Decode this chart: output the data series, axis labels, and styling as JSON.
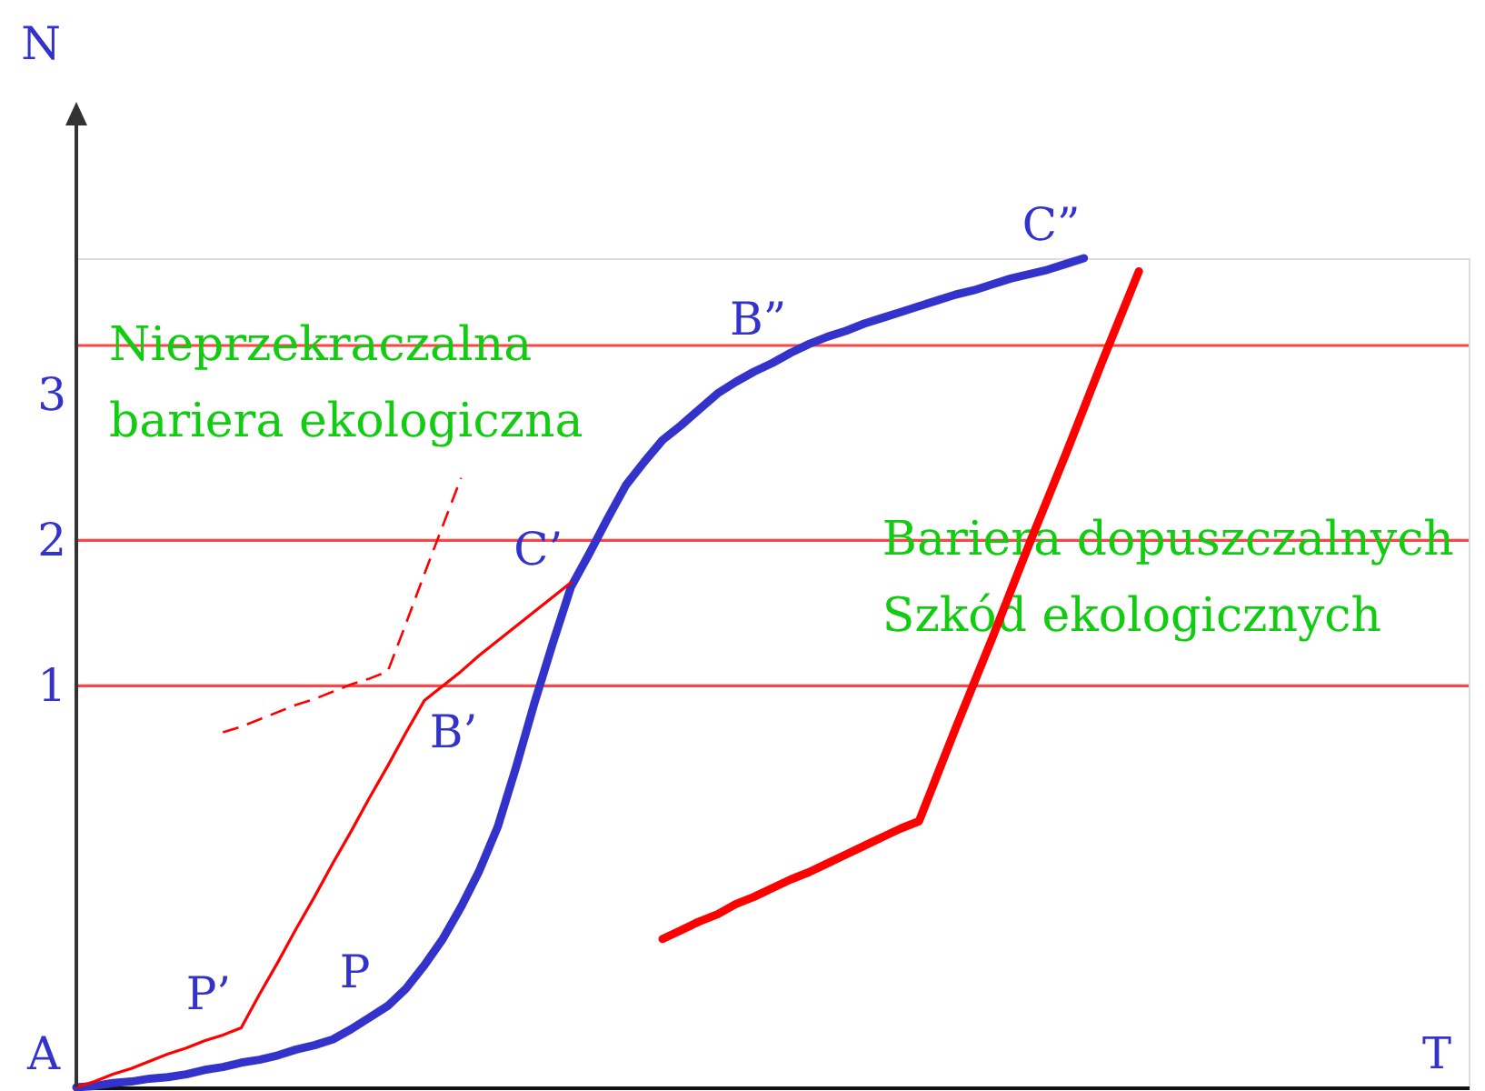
{
  "chart_data": {
    "type": "line",
    "xlabel": "T",
    "ylabel": "N",
    "ylim": [
      -1.76,
      3.94
    ],
    "yticks": [
      1,
      2,
      3
    ],
    "categories": [
      null,
      null,
      null,
      null,
      null,
      null,
      null,
      null,
      null,
      null,
      null,
      null,
      null,
      null,
      null,
      null,
      null,
      null,
      null,
      null,
      null,
      null,
      null,
      null,
      null,
      null,
      null,
      null,
      null,
      null,
      null,
      null,
      null,
      null,
      null,
      null,
      null,
      null,
      null,
      null,
      null,
      null,
      null,
      null,
      null,
      null,
      null,
      null,
      null,
      null,
      null,
      null,
      null,
      null,
      null,
      null,
      null,
      null,
      null,
      null,
      null,
      null,
      null,
      null,
      null,
      null,
      null,
      null,
      null,
      null,
      null,
      null,
      null,
      null,
      null,
      null,
      null
    ],
    "series": [
      {
        "color": "#3333cc",
        "values": [
          -1.76,
          -1.75,
          -1.73,
          -1.72,
          -1.7,
          -1.69,
          -1.67,
          -1.64,
          -1.62,
          -1.59,
          -1.57,
          -1.54,
          -1.5,
          -1.47,
          -1.43,
          -1.36,
          -1.28,
          -1.2,
          -1.08,
          -0.92,
          -0.74,
          -0.52,
          -0.27,
          0.03,
          0.44,
          0.88,
          1.29,
          1.68,
          1.91,
          2.15,
          2.38,
          2.54,
          2.69,
          2.79,
          2.9,
          3.01,
          3.09,
          3.16,
          3.22,
          3.29,
          3.35,
          3.4,
          3.44,
          3.49,
          3.53,
          3.57,
          3.61,
          3.65,
          3.69,
          3.72,
          3.76,
          3.8,
          3.83,
          3.86,
          3.9,
          3.94,
          null,
          null,
          null,
          null,
          null,
          null,
          null,
          null,
          null,
          null,
          null,
          null,
          null,
          null,
          null,
          null,
          null,
          null,
          null,
          null,
          null
        ],
        "value_labels": [
          "A",
          null,
          null,
          null,
          null,
          null,
          null,
          null,
          null,
          null,
          null,
          null,
          null,
          null,
          null,
          null,
          null,
          "P",
          null,
          null,
          null,
          null,
          null,
          null,
          null,
          null,
          null,
          null,
          null,
          null,
          null,
          null,
          null,
          null,
          null,
          null,
          null,
          null,
          null,
          "B”",
          null,
          null,
          null,
          null,
          null,
          null,
          null,
          null,
          null,
          null,
          null,
          null,
          null,
          null,
          null,
          "C”",
          null,
          null,
          null,
          null,
          null,
          null,
          null,
          null,
          null,
          null,
          null,
          null,
          null,
          null,
          null,
          null,
          null,
          null,
          null,
          null,
          null
        ]
      },
      {
        "color": "#ff0000",
        "values": [
          -1.76,
          -1.72,
          -1.67,
          -1.63,
          -1.58,
          -1.53,
          -1.49,
          -1.44,
          -1.4,
          -1.35,
          -1.12,
          -0.9,
          -0.67,
          -0.45,
          -0.22,
          0.0,
          0.23,
          0.45,
          0.68,
          0.9,
          1.0,
          1.1,
          1.21,
          1.31,
          1.41,
          1.51,
          1.61,
          1.71,
          null,
          null,
          null,
          null,
          null,
          null,
          null,
          null,
          null,
          null,
          null,
          null,
          null,
          null,
          null,
          null,
          null,
          null,
          null,
          null,
          null,
          null,
          null,
          null,
          null,
          null,
          null,
          null,
          null,
          null,
          null,
          null,
          null,
          null,
          null,
          null,
          null,
          null,
          null,
          null,
          null,
          null,
          null,
          null,
          null,
          null,
          null,
          null,
          null
        ],
        "value_labels": [
          null,
          null,
          null,
          null,
          null,
          null,
          null,
          null,
          null,
          "P’",
          null,
          null,
          null,
          null,
          null,
          null,
          null,
          null,
          null,
          "B’",
          null,
          null,
          null,
          null,
          null,
          null,
          null,
          "C’",
          null,
          null,
          null,
          null,
          null,
          null,
          null,
          null,
          null,
          null,
          null,
          null,
          null,
          null,
          null,
          null,
          null,
          null,
          null,
          null,
          null,
          null,
          null,
          null,
          null,
          null,
          null,
          null,
          null,
          null,
          null,
          null,
          null,
          null,
          null,
          null,
          null,
          null,
          null,
          null,
          null,
          null,
          null,
          null,
          null,
          null,
          null,
          null,
          null
        ]
      },
      {
        "color": "#ff0000",
        "line_style": "dashed",
        "values": [
          null,
          null,
          null,
          null,
          null,
          null,
          null,
          null,
          0.68,
          0.72,
          0.77,
          0.82,
          0.87,
          0.91,
          0.96,
          1.01,
          1.05,
          1.1,
          1.43,
          1.77,
          2.1,
          2.43,
          null,
          null,
          null,
          null,
          null,
          null,
          null,
          null,
          null,
          null,
          null,
          null,
          null,
          null,
          null,
          null,
          null,
          null,
          null,
          null,
          null,
          null,
          null,
          null,
          null,
          null,
          null,
          null,
          null,
          null,
          null,
          null,
          null,
          null,
          null,
          null,
          null,
          null,
          null,
          null,
          null,
          null,
          null,
          null,
          null,
          null,
          null,
          null,
          null,
          null,
          null,
          null,
          null,
          null,
          null
        ]
      },
      {
        "color": "#ff0000",
        "values": [
          null,
          null,
          null,
          null,
          null,
          null,
          null,
          null,
          null,
          null,
          null,
          null,
          null,
          null,
          null,
          null,
          null,
          null,
          null,
          null,
          null,
          null,
          null,
          null,
          null,
          null,
          null,
          null,
          null,
          null,
          null,
          null,
          -0.74,
          -0.68,
          -0.62,
          -0.57,
          -0.5,
          -0.45,
          -0.39,
          -0.33,
          -0.28,
          -0.22,
          -0.16,
          -0.1,
          -0.04,
          0.02,
          0.07,
          0.39,
          0.71,
          1.02,
          1.33,
          1.65,
          1.97,
          2.28,
          2.59,
          2.91,
          3.23,
          3.54,
          3.85,
          null,
          null,
          null,
          null,
          null,
          null,
          null,
          null,
          null,
          null,
          null,
          null,
          null,
          null,
          null,
          null,
          null,
          null
        ]
      }
    ],
    "ref_lines": [
      {
        "axis": "y",
        "value": 1,
        "color": "#ff4444"
      },
      {
        "axis": "y",
        "value": 2,
        "label": "Bariera dopuszczalnych\nSzkód ekologicznych",
        "color": "#ff4444"
      },
      {
        "axis": "y",
        "value": 3.34,
        "label": "Nieprzekraczalna\nbariera ekologiczna",
        "color": "#ff4444"
      }
    ]
  }
}
